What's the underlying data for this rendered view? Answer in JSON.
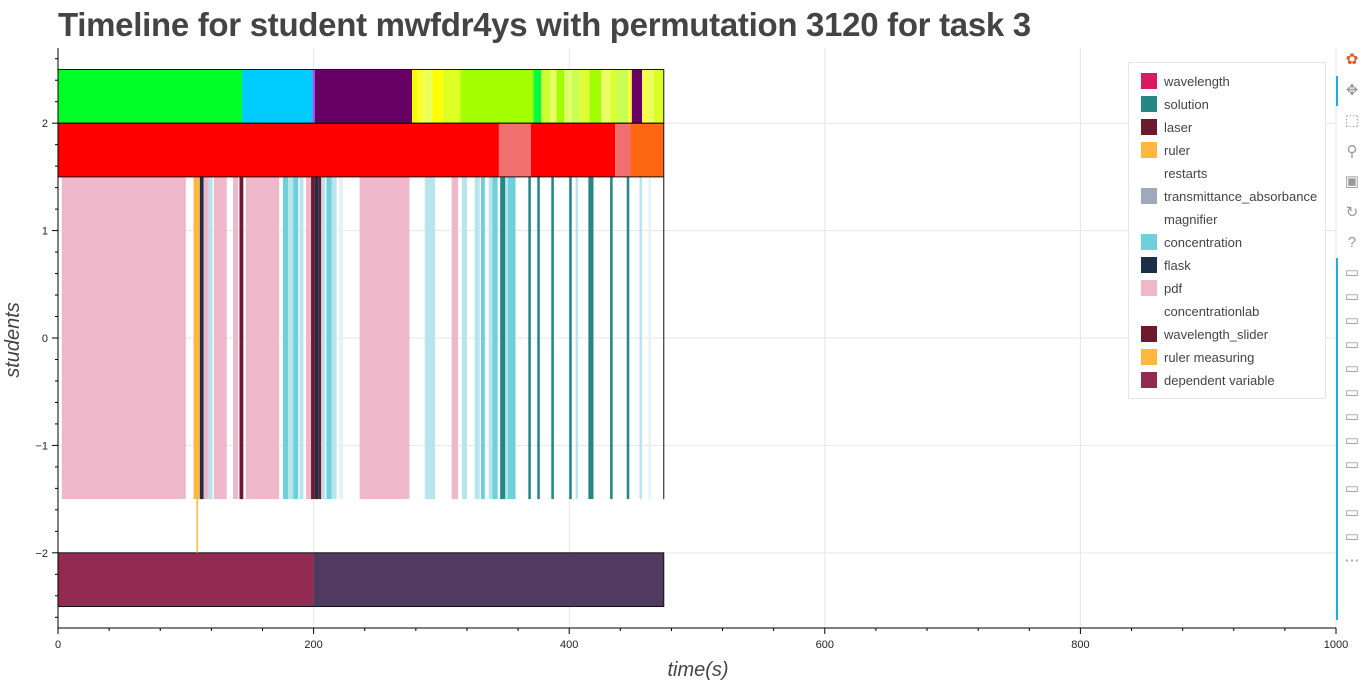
{
  "title": "Timeline for student mwfdr4ys with permutation 3120 for task 3",
  "chart_data": {
    "type": "timeline",
    "title": "Timeline for student mwfdr4ys with permutation 3120 for task 3",
    "xlabel": "time(s)",
    "ylabel": "students",
    "xlim": [
      0,
      1000
    ],
    "ylim": [
      -2.7,
      2.7
    ],
    "x_ticks": [
      0,
      200,
      400,
      600,
      800,
      1000
    ],
    "y_ticks": [
      -2,
      -1,
      0,
      1,
      2
    ],
    "grid": true,
    "legend_position": "top-right",
    "legend": [
      {
        "label": "wavelength",
        "color": "#d81b60"
      },
      {
        "label": "solution",
        "color": "#268785"
      },
      {
        "label": "laser",
        "color": "#6d1a2e"
      },
      {
        "label": "ruler",
        "color": "#ffb740"
      },
      {
        "label": "restarts",
        "color": "#ffffff"
      },
      {
        "label": "transmittance_absorbance",
        "color": "#9caabb"
      },
      {
        "label": "magnifier",
        "color": "#ffffff"
      },
      {
        "label": "concentration",
        "color": "#6ed0da"
      },
      {
        "label": "flask",
        "color": "#1c2e48"
      },
      {
        "label": "pdf",
        "color": "#efb7ca"
      },
      {
        "label": "concentrationlab",
        "color": "#ffffff"
      },
      {
        "label": "wavelength_slider",
        "color": "#6d1a2e"
      },
      {
        "label": "ruler measuring",
        "color": "#ffb740"
      },
      {
        "label": "dependent variable",
        "color": "#922a52"
      }
    ],
    "bands": [
      {
        "y0": 2.0,
        "y1": 2.5,
        "segments": [
          {
            "x0": 0,
            "x1": 144,
            "color": "#00ff26"
          },
          {
            "x0": 144,
            "x1": 199,
            "color": "#00ccff"
          },
          {
            "x0": 199,
            "x1": 201,
            "color": "#8a5cf6"
          },
          {
            "x0": 201,
            "x1": 277,
            "color": "#660066"
          },
          {
            "x0": 277,
            "x1": 281,
            "color": "#f0ff00"
          },
          {
            "x0": 281,
            "x1": 286,
            "color": "#ffff30"
          },
          {
            "x0": 286,
            "x1": 293,
            "color": "#eaff5a"
          },
          {
            "x0": 293,
            "x1": 301,
            "color": "#ffff00"
          },
          {
            "x0": 301,
            "x1": 315,
            "color": "#ddff22"
          },
          {
            "x0": 315,
            "x1": 372,
            "color": "#a3ff00"
          },
          {
            "x0": 372,
            "x1": 378,
            "color": "#00ff44"
          },
          {
            "x0": 378,
            "x1": 385,
            "color": "#c9ff33"
          },
          {
            "x0": 385,
            "x1": 390,
            "color": "#eaff66"
          },
          {
            "x0": 390,
            "x1": 396,
            "color": "#a3ff00"
          },
          {
            "x0": 396,
            "x1": 402,
            "color": "#ddff66"
          },
          {
            "x0": 402,
            "x1": 408,
            "color": "#c9ff55"
          },
          {
            "x0": 408,
            "x1": 416,
            "color": "#ddff33"
          },
          {
            "x0": 416,
            "x1": 425,
            "color": "#a3ff00"
          },
          {
            "x0": 425,
            "x1": 432,
            "color": "#eaff66"
          },
          {
            "x0": 432,
            "x1": 437,
            "color": "#ddff33"
          },
          {
            "x0": 437,
            "x1": 446,
            "color": "#c9ff55"
          },
          {
            "x0": 446,
            "x1": 449,
            "color": "#ffff33"
          },
          {
            "x0": 449,
            "x1": 457,
            "color": "#660066"
          },
          {
            "x0": 457,
            "x1": 462,
            "color": "#ffff44"
          },
          {
            "x0": 462,
            "x1": 466,
            "color": "#e8ff66"
          },
          {
            "x0": 466,
            "x1": 474,
            "color": "#ddff22"
          }
        ]
      },
      {
        "y0": 1.5,
        "y1": 2.0,
        "segments": [
          {
            "x0": 0,
            "x1": 345,
            "color": "#ff0000"
          },
          {
            "x0": 345,
            "x1": 370,
            "color": "#f07070"
          },
          {
            "x0": 370,
            "x1": 436,
            "color": "#ff0000"
          },
          {
            "x0": 436,
            "x1": 448,
            "color": "#f07070"
          },
          {
            "x0": 448,
            "x1": 474,
            "color": "#ff6611"
          }
        ]
      },
      {
        "y0": -2.5,
        "y1": -2.0,
        "segments": [
          {
            "x0": 0,
            "x1": 200,
            "color": "#922a52"
          },
          {
            "x0": 200,
            "x1": 474,
            "color": "#503a60"
          }
        ]
      }
    ],
    "events": [
      {
        "x0": 3,
        "x1": 100,
        "color": "#efb7ca"
      },
      {
        "x0": 106,
        "x1": 111,
        "color": "#ffb740"
      },
      {
        "x0": 111,
        "x1": 114,
        "color": "#1c2e48"
      },
      {
        "x0": 114,
        "x1": 118,
        "color": "#efb7ca"
      },
      {
        "x0": 118,
        "x1": 121,
        "color": "#b8e5ec"
      },
      {
        "x0": 122,
        "x1": 132,
        "color": "#efb7ca"
      },
      {
        "x0": 137,
        "x1": 141,
        "color": "#efb7ca"
      },
      {
        "x0": 142,
        "x1": 145,
        "color": "#6d1a2e"
      },
      {
        "x0": 147,
        "x1": 173,
        "color": "#efb7ca"
      },
      {
        "x0": 176,
        "x1": 180,
        "color": "#6ed0da"
      },
      {
        "x0": 180,
        "x1": 184,
        "color": "#b8e5ec"
      },
      {
        "x0": 184,
        "x1": 188,
        "color": "#6ed0da"
      },
      {
        "x0": 189,
        "x1": 192,
        "color": "#b8e5ec"
      },
      {
        "x0": 194,
        "x1": 198,
        "color": "#efb7ca"
      },
      {
        "x0": 198,
        "x1": 201,
        "color": "#6d1a2e"
      },
      {
        "x0": 201,
        "x1": 204,
        "color": "#1c2e48"
      },
      {
        "x0": 204,
        "x1": 206,
        "color": "#6d1a2e"
      },
      {
        "x0": 206,
        "x1": 209,
        "color": "#b8e5ec"
      },
      {
        "x0": 210,
        "x1": 214,
        "color": "#6ed0da"
      },
      {
        "x0": 214,
        "x1": 218,
        "color": "#b8e5ec"
      },
      {
        "x0": 220,
        "x1": 223,
        "color": "#e3f3f6"
      },
      {
        "x0": 236,
        "x1": 275,
        "color": "#efb7ca"
      },
      {
        "x0": 287,
        "x1": 295,
        "color": "#b8e5ec"
      },
      {
        "x0": 308,
        "x1": 313,
        "color": "#efb7ca"
      },
      {
        "x0": 316,
        "x1": 320,
        "color": "#b8e5ec"
      },
      {
        "x0": 326,
        "x1": 330,
        "color": "#b8e5ec"
      },
      {
        "x0": 331,
        "x1": 334,
        "color": "#6ed0da"
      },
      {
        "x0": 337,
        "x1": 340,
        "color": "#b8e5ec"
      },
      {
        "x0": 340,
        "x1": 344,
        "color": "#6ed0da"
      },
      {
        "x0": 346,
        "x1": 350,
        "color": "#268785"
      },
      {
        "x0": 350,
        "x1": 352,
        "color": "#b8e5ec"
      },
      {
        "x0": 352,
        "x1": 358,
        "color": "#6ed0da"
      },
      {
        "x0": 368,
        "x1": 370,
        "color": "#268785"
      },
      {
        "x0": 375,
        "x1": 377,
        "color": "#268785"
      },
      {
        "x0": 386,
        "x1": 388,
        "color": "#268785"
      },
      {
        "x0": 400,
        "x1": 402,
        "color": "#268785"
      },
      {
        "x0": 405,
        "x1": 407,
        "color": "#b8e5ec"
      },
      {
        "x0": 415,
        "x1": 419,
        "color": "#268785"
      },
      {
        "x0": 432,
        "x1": 434,
        "color": "#268785"
      },
      {
        "x0": 445,
        "x1": 447,
        "color": "#268785"
      },
      {
        "x0": 455,
        "x1": 457,
        "color": "#b8e5ec"
      },
      {
        "x0": 462,
        "x1": 464,
        "color": "#e3f3f6"
      }
    ],
    "event_y": [
      -1.5,
      1.5
    ],
    "marker_line": {
      "x": 109,
      "y0": -2.0,
      "y1": -1.5,
      "color": "#ffb740"
    }
  },
  "toolbar": {
    "tools": [
      {
        "name": "bokeh-logo-icon",
        "glyph": "✿",
        "color": "#e25b2b"
      },
      {
        "name": "pan-icon",
        "glyph": "✥"
      },
      {
        "name": "box-zoom-icon",
        "glyph": "⬚"
      },
      {
        "name": "wheel-zoom-icon",
        "glyph": "⚲"
      },
      {
        "name": "save-icon",
        "glyph": "▣"
      },
      {
        "name": "reset-icon",
        "glyph": "↻"
      },
      {
        "name": "help-icon",
        "glyph": "?"
      },
      {
        "name": "hover-icon",
        "glyph": "▭"
      },
      {
        "name": "hover-icon",
        "glyph": "▭"
      },
      {
        "name": "hover-icon",
        "glyph": "▭"
      },
      {
        "name": "hover-icon",
        "glyph": "▭"
      },
      {
        "name": "hover-icon",
        "glyph": "▭"
      },
      {
        "name": "hover-icon",
        "glyph": "▭"
      },
      {
        "name": "hover-icon",
        "glyph": "▭"
      },
      {
        "name": "hover-icon",
        "glyph": "▭"
      },
      {
        "name": "hover-icon",
        "glyph": "▭"
      },
      {
        "name": "hover-icon",
        "glyph": "▭"
      },
      {
        "name": "hover-icon",
        "glyph": "▭"
      },
      {
        "name": "hover-icon",
        "glyph": "▭"
      },
      {
        "name": "more-icon",
        "glyph": "⋯"
      }
    ]
  }
}
